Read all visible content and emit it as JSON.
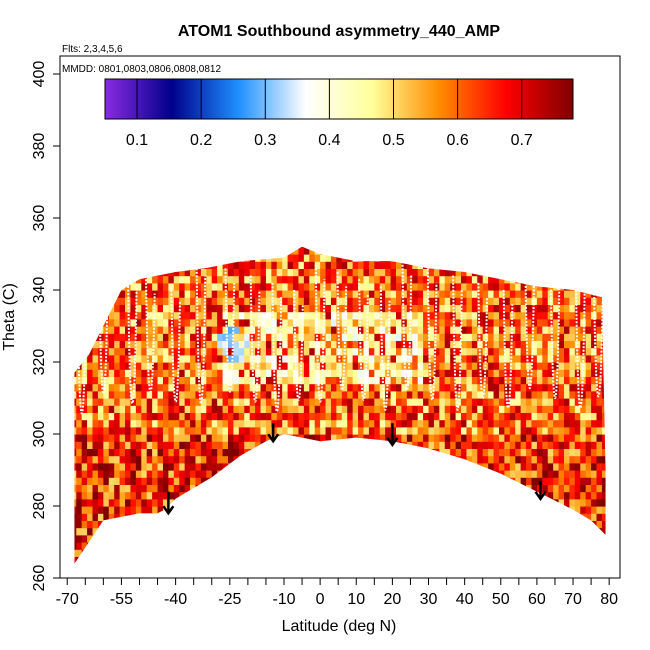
{
  "chart_data": {
    "type": "heatmap",
    "title": "ATOM1 Southbound asymmetry_440_AMP",
    "flights_note": "Flts: 2,3,4,5,6",
    "dates_note": "MMDD: 0801,0803,0806,0808,0812",
    "xlabel": "Latitude (deg N)",
    "ylabel": "Theta (C)",
    "xlim": [
      -72,
      83
    ],
    "ylim": [
      260,
      405
    ],
    "x_ticks": [
      -70,
      -55,
      -40,
      -25,
      -10,
      0,
      10,
      20,
      30,
      40,
      50,
      60,
      70,
      80
    ],
    "y_ticks": [
      260,
      280,
      300,
      320,
      340,
      360,
      380,
      400
    ],
    "colorbar": {
      "range": [
        0.05,
        0.78
      ],
      "ticks": [
        0.1,
        0.2,
        0.3,
        0.4,
        0.5,
        0.6,
        0.7
      ],
      "colors": [
        "#8a2be2",
        "#00008b",
        "#1e90ff",
        "#ffffff",
        "#ffff99",
        "#ff8c00",
        "#ff0000",
        "#800000"
      ]
    },
    "upper_boundary": [
      [
        -68,
        317
      ],
      [
        -64,
        322
      ],
      [
        -60,
        330
      ],
      [
        -55,
        340
      ],
      [
        -50,
        343
      ],
      [
        -40,
        345
      ],
      [
        -32,
        346
      ],
      [
        -22,
        348
      ],
      [
        -10,
        349
      ],
      [
        -5,
        352
      ],
      [
        0,
        350
      ],
      [
        10,
        348
      ],
      [
        20,
        348
      ],
      [
        30,
        346
      ],
      [
        40,
        345
      ],
      [
        50,
        343
      ],
      [
        60,
        341
      ],
      [
        70,
        340
      ],
      [
        78,
        338
      ],
      [
        79,
        290
      ]
    ],
    "lower_boundary": [
      [
        -68,
        264
      ],
      [
        -60,
        276
      ],
      [
        -50,
        278
      ],
      [
        -45,
        278
      ],
      [
        -43,
        279
      ],
      [
        -40,
        282
      ],
      [
        -30,
        288
      ],
      [
        -22,
        294
      ],
      [
        -15,
        298
      ],
      [
        -10,
        300
      ],
      [
        0,
        298
      ],
      [
        10,
        299
      ],
      [
        20,
        298
      ],
      [
        30,
        296
      ],
      [
        40,
        293
      ],
      [
        50,
        289
      ],
      [
        60,
        284
      ],
      [
        70,
        279
      ],
      [
        75,
        276
      ],
      [
        79,
        272
      ]
    ],
    "arrows": [
      [
        -42,
        284,
        278
      ],
      [
        -13,
        303,
        298
      ],
      [
        20,
        303,
        297
      ],
      [
        61,
        287,
        282
      ]
    ],
    "white_anomaly_zone": {
      "lat": [
        -28,
        28
      ],
      "theta": [
        312,
        334
      ],
      "value": 0.35
    }
  }
}
